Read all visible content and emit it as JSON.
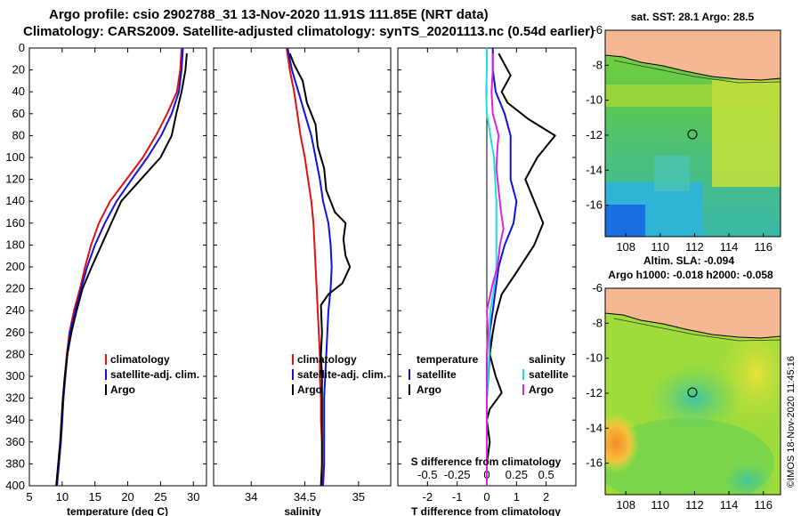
{
  "titles": {
    "line1": "Argo profile: csio 2902788_31 13-Nov-2020 11.91S 111.85E (NRT data)",
    "line2": "Climatology: CARS2009. Satellite-adjusted climatology: synTS_20201113.nc (0.54d earlier)"
  },
  "colors": {
    "climatology": "#dd1111",
    "satellite": "#1111dd",
    "argo": "#000000",
    "sat_salinity": "#22dddd",
    "argo_salinity": "#dd22dd",
    "land": "#f5b893"
  },
  "chart_data": [
    {
      "type": "line",
      "id": "temperature",
      "xlabel": "temperature (deg C)",
      "xlim": [
        5,
        32
      ],
      "ylim": [
        400,
        0
      ],
      "xticks": [
        5,
        10,
        15,
        20,
        25,
        30
      ],
      "yticks": [
        0,
        20,
        40,
        60,
        80,
        100,
        120,
        140,
        160,
        180,
        200,
        220,
        240,
        260,
        280,
        300,
        320,
        340,
        360,
        380,
        400
      ],
      "legend": [
        "climatology",
        "satellite-adj. clim.",
        "Argo"
      ],
      "series": [
        {
          "name": "climatology",
          "color": "#dd1111",
          "points": [
            [
              28.2,
              0
            ],
            [
              28.0,
              20
            ],
            [
              27.5,
              40
            ],
            [
              26.0,
              60
            ],
            [
              24.3,
              80
            ],
            [
              22.3,
              100
            ],
            [
              19.8,
              120
            ],
            [
              17.3,
              140
            ],
            [
              15.6,
              160
            ],
            [
              14.4,
              180
            ],
            [
              13.5,
              200
            ],
            [
              12.7,
              220
            ],
            [
              11.8,
              240
            ],
            [
              11.1,
              260
            ],
            [
              10.7,
              280
            ],
            [
              10.4,
              300
            ],
            [
              10.2,
              320
            ],
            [
              10.0,
              340
            ],
            [
              9.8,
              360
            ],
            [
              9.5,
              380
            ],
            [
              9.2,
              400
            ]
          ]
        },
        {
          "name": "satellite-adj. clim.",
          "color": "#1111dd",
          "points": [
            [
              28.4,
              0
            ],
            [
              28.2,
              20
            ],
            [
              27.8,
              40
            ],
            [
              26.7,
              60
            ],
            [
              25.1,
              80
            ],
            [
              23.0,
              100
            ],
            [
              20.6,
              120
            ],
            [
              18.3,
              140
            ],
            [
              16.5,
              160
            ],
            [
              15.0,
              180
            ],
            [
              13.8,
              200
            ],
            [
              12.9,
              220
            ],
            [
              12.0,
              240
            ],
            [
              11.2,
              260
            ],
            [
              10.8,
              280
            ],
            [
              10.5,
              300
            ],
            [
              10.2,
              320
            ],
            [
              10.0,
              340
            ],
            [
              9.8,
              360
            ],
            [
              9.5,
              380
            ],
            [
              9.2,
              400
            ]
          ]
        },
        {
          "name": "Argo",
          "color": "#000000",
          "points": [
            [
              29.0,
              5
            ],
            [
              28.8,
              20
            ],
            [
              28.2,
              40
            ],
            [
              27.4,
              60
            ],
            [
              26.7,
              80
            ],
            [
              25.0,
              100
            ],
            [
              22.0,
              120
            ],
            [
              19.0,
              140
            ],
            [
              17.5,
              160
            ],
            [
              16.0,
              180
            ],
            [
              14.5,
              200
            ],
            [
              13.1,
              220
            ],
            [
              12.2,
              240
            ],
            [
              11.4,
              260
            ],
            [
              10.8,
              280
            ],
            [
              10.4,
              300
            ],
            [
              10.1,
              320
            ],
            [
              9.9,
              340
            ],
            [
              9.7,
              360
            ],
            [
              9.4,
              380
            ],
            [
              9.1,
              400
            ]
          ]
        }
      ]
    },
    {
      "type": "line",
      "id": "salinity",
      "xlabel": "salinity",
      "xlim": [
        33.65,
        35.3
      ],
      "ylim": [
        400,
        0
      ],
      "xticks": [
        34,
        34.5,
        35
      ],
      "xticklabels": [
        "34",
        "34.5",
        "35"
      ],
      "legend": [
        "climatology",
        "satellite-adj. clim.",
        "Argo"
      ],
      "series": [
        {
          "name": "climatology",
          "color": "#dd1111",
          "points": [
            [
              34.33,
              0
            ],
            [
              34.36,
              20
            ],
            [
              34.4,
              40
            ],
            [
              34.43,
              60
            ],
            [
              34.46,
              80
            ],
            [
              34.5,
              100
            ],
            [
              34.53,
              120
            ],
            [
              34.56,
              140
            ],
            [
              34.58,
              160
            ],
            [
              34.59,
              180
            ],
            [
              34.6,
              200
            ],
            [
              34.61,
              220
            ],
            [
              34.62,
              240
            ],
            [
              34.63,
              260
            ],
            [
              34.64,
              280
            ],
            [
              34.64,
              300
            ],
            [
              34.65,
              320
            ],
            [
              34.65,
              340
            ],
            [
              34.66,
              360
            ],
            [
              34.66,
              380
            ],
            [
              34.66,
              400
            ]
          ]
        },
        {
          "name": "satellite-adj. clim.",
          "color": "#1111dd",
          "points": [
            [
              34.34,
              0
            ],
            [
              34.38,
              20
            ],
            [
              34.44,
              40
            ],
            [
              34.5,
              60
            ],
            [
              34.56,
              80
            ],
            [
              34.6,
              100
            ],
            [
              34.64,
              120
            ],
            [
              34.67,
              140
            ],
            [
              34.72,
              160
            ],
            [
              34.74,
              180
            ],
            [
              34.75,
              200
            ],
            [
              34.74,
              220
            ],
            [
              34.72,
              240
            ],
            [
              34.71,
              260
            ],
            [
              34.7,
              280
            ],
            [
              34.69,
              300
            ],
            [
              34.68,
              320
            ],
            [
              34.68,
              340
            ],
            [
              34.68,
              360
            ],
            [
              34.68,
              380
            ],
            [
              34.67,
              400
            ]
          ]
        },
        {
          "name": "Argo",
          "color": "#000000",
          "points": [
            [
              34.36,
              5
            ],
            [
              34.4,
              15
            ],
            [
              34.48,
              30
            ],
            [
              34.52,
              50
            ],
            [
              34.6,
              70
            ],
            [
              34.62,
              90
            ],
            [
              34.68,
              110
            ],
            [
              34.7,
              130
            ],
            [
              34.78,
              150
            ],
            [
              34.88,
              160
            ],
            [
              34.86,
              175
            ],
            [
              34.88,
              190
            ],
            [
              34.92,
              200
            ],
            [
              34.85,
              215
            ],
            [
              34.72,
              225
            ],
            [
              34.65,
              235
            ],
            [
              34.66,
              260
            ],
            [
              34.65,
              280
            ],
            [
              34.66,
              300
            ],
            [
              34.66,
              320
            ],
            [
              34.66,
              340
            ],
            [
              34.66,
              360
            ],
            [
              34.66,
              380
            ],
            [
              34.65,
              400
            ]
          ]
        }
      ]
    },
    {
      "type": "line",
      "id": "difference",
      "xlabel": "T difference from climatology",
      "xlabel_top": "S difference from climatology",
      "xlim": [
        -3.0,
        3.0
      ],
      "ylim": [
        400,
        0
      ],
      "xticks": [
        -2,
        -1,
        0,
        1,
        2
      ],
      "xticklabels": [
        "-2",
        "-1",
        "0",
        "1",
        "2"
      ],
      "s_ticks": [
        -0.5,
        -0.25,
        0,
        0.25,
        0.5
      ],
      "s_ticklabels": [
        "-0.5",
        "-0.25",
        "0",
        "0.25",
        "0.5"
      ],
      "s_scale": 4,
      "legend_temperature": {
        "title": "temperature",
        "items": [
          "satellite",
          "Argo"
        ]
      },
      "legend_salinity": {
        "title": "salinity",
        "items": [
          "satellite",
          "Argo"
        ]
      },
      "series": [
        {
          "name": "T satellite",
          "color": "#1111dd",
          "points": [
            [
              0.2,
              0
            ],
            [
              0.2,
              20
            ],
            [
              0.3,
              40
            ],
            [
              0.6,
              60
            ],
            [
              0.8,
              80
            ],
            [
              0.8,
              100
            ],
            [
              0.8,
              120
            ],
            [
              1.0,
              140
            ],
            [
              0.9,
              160
            ],
            [
              0.6,
              180
            ],
            [
              0.4,
              200
            ],
            [
              0.3,
              220
            ],
            [
              0.2,
              240
            ],
            [
              0.1,
              260
            ],
            [
              0.1,
              280
            ],
            [
              0.05,
              300
            ],
            [
              0.0,
              320
            ],
            [
              0.0,
              340
            ],
            [
              0.0,
              360
            ],
            [
              0.0,
              380
            ],
            [
              0.0,
              400
            ]
          ]
        },
        {
          "name": "T Argo",
          "color": "#000000",
          "points": [
            [
              0.4,
              5
            ],
            [
              0.8,
              25
            ],
            [
              0.5,
              40
            ],
            [
              0.7,
              50
            ],
            [
              1.4,
              65
            ],
            [
              2.3,
              80
            ],
            [
              1.7,
              100
            ],
            [
              1.3,
              120
            ],
            [
              1.6,
              140
            ],
            [
              1.9,
              160
            ],
            [
              1.6,
              180
            ],
            [
              1.0,
              205
            ],
            [
              0.5,
              225
            ],
            [
              0.3,
              245
            ],
            [
              0.2,
              260
            ],
            [
              0.1,
              280
            ],
            [
              0.3,
              300
            ],
            [
              0.5,
              315
            ],
            [
              0.1,
              330
            ],
            [
              0.0,
              340
            ],
            [
              0.1,
              360
            ],
            [
              0.0,
              380
            ],
            [
              0.0,
              400
            ]
          ]
        },
        {
          "name": "S satellite",
          "color": "#22dddd",
          "points": [
            [
              0.0,
              0
            ],
            [
              0.0,
              20
            ],
            [
              -0.005,
              40
            ],
            [
              0.0,
              60
            ],
            [
              0.03,
              80
            ],
            [
              0.06,
              100
            ],
            [
              0.07,
              120
            ],
            [
              0.08,
              140
            ],
            [
              0.08,
              160
            ],
            [
              0.08,
              180
            ],
            [
              0.08,
              200
            ],
            [
              0.06,
              220
            ],
            [
              0.03,
              240
            ],
            [
              0.02,
              260
            ],
            [
              0.02,
              280
            ],
            [
              0.01,
              300
            ],
            [
              0.0,
              320
            ],
            [
              0.0,
              340
            ],
            [
              0.0,
              360
            ],
            [
              0.0,
              380
            ],
            [
              0.0,
              400
            ]
          ]
        },
        {
          "name": "S Argo",
          "color": "#dd22dd",
          "points": [
            [
              0.05,
              5
            ],
            [
              0.05,
              20
            ],
            [
              0.04,
              40
            ],
            [
              0.05,
              60
            ],
            [
              0.1,
              80
            ],
            [
              0.09,
              90
            ],
            [
              0.08,
              110
            ],
            [
              0.1,
              130
            ],
            [
              0.12,
              150
            ],
            [
              0.14,
              165
            ],
            [
              0.11,
              180
            ],
            [
              0.09,
              200
            ],
            [
              0.05,
              215
            ],
            [
              0.0,
              240
            ],
            [
              0.01,
              260
            ],
            [
              0.0,
              280
            ],
            [
              0.0,
              300
            ],
            [
              0.0,
              320
            ],
            [
              0.0,
              340
            ],
            [
              0.0,
              360
            ],
            [
              0.0,
              380
            ],
            [
              0.0,
              400
            ]
          ]
        }
      ]
    },
    {
      "type": "heatmap",
      "id": "sst_map",
      "title": "sat. SST: 28.1 Argo: 28.5",
      "xlim": [
        106.8,
        117.0
      ],
      "ylim": [
        -17.8,
        -6.0
      ],
      "xticks": [
        108,
        110,
        112,
        114,
        116
      ],
      "xticklabels": [
        "108",
        "110",
        "112",
        "114",
        "116"
      ],
      "yticks": [
        -6,
        -8,
        -10,
        -12,
        -14,
        -16
      ],
      "yticklabels": [
        "-6",
        "-8",
        "-10",
        "-12",
        "-14",
        "-16"
      ],
      "marker": [
        111.85,
        -11.91
      ]
    },
    {
      "type": "heatmap",
      "id": "sla_map",
      "title1": "Altim. SLA: -0.094",
      "title2": "Argo h1000: -0.018 h2000: -0.058",
      "xlim": [
        106.8,
        117.0
      ],
      "ylim": [
        -17.8,
        -6.0
      ],
      "xticks": [
        108,
        110,
        112,
        114,
        116
      ],
      "xticklabels": [
        "108",
        "110",
        "112",
        "114",
        "116"
      ],
      "yticks": [
        -6,
        -8,
        -10,
        -12,
        -14,
        -16
      ],
      "yticklabels": [
        "-6",
        "-8",
        "-10",
        "-12",
        "-14",
        "-16"
      ],
      "marker": [
        111.85,
        -11.91
      ]
    }
  ],
  "credit": "©IMOS 18-Nov-2020 11:45:16"
}
